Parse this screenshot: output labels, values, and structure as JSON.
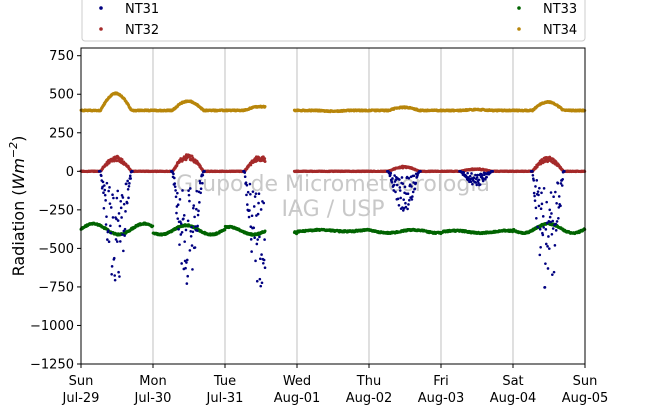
{
  "chart_data": {
    "type": "scatter",
    "title": "",
    "xlabel": "",
    "ylabel": "Radiation (Wm^-2)",
    "ylim": [
      -1250,
      800
    ],
    "xlim": [
      0,
      7
    ],
    "grid": "vertical at day boundaries",
    "legend_position": "top (above plot), two columns",
    "watermark": [
      "Grupo de Micrometeorologia",
      "IAG / USP"
    ],
    "x_ticks": [
      {
        "day": 0,
        "weekday": "Sun",
        "date": "Jul-29"
      },
      {
        "day": 1,
        "weekday": "Mon",
        "date": "Jul-30"
      },
      {
        "day": 2,
        "weekday": "Tue",
        "date": "Jul-31"
      },
      {
        "day": 3,
        "weekday": "Wed",
        "date": "Aug-01"
      },
      {
        "day": 4,
        "weekday": "Thu",
        "date": "Aug-02"
      },
      {
        "day": 5,
        "weekday": "Fri",
        "date": "Aug-03"
      },
      {
        "day": 6,
        "weekday": "Sat",
        "date": "Aug-04"
      },
      {
        "day": 7,
        "weekday": "Sun",
        "date": "Aug-05"
      }
    ],
    "y_ticks": [
      750,
      500,
      250,
      0,
      -250,
      -500,
      -750,
      -1000,
      -1250
    ],
    "data_gap": [
      2.56,
      2.96
    ],
    "series": [
      {
        "name": "NT31",
        "color": "#000080",
        "baseline": 0,
        "daily_minimum": [
          -710,
          -720,
          -750,
          null,
          -260,
          -90,
          -780
        ]
      },
      {
        "name": "NT32",
        "color": "#a52a2a",
        "baseline": 0,
        "daily_peak": [
          90,
          100,
          90,
          null,
          30,
          15,
          85
        ]
      },
      {
        "name": "NT33",
        "color": "#006400",
        "baseline": -380,
        "daily_range": [
          [
            -410,
            -340
          ],
          [
            -410,
            -350
          ],
          [
            -410,
            -360
          ],
          [
            -390,
            -380
          ],
          [
            -400,
            -380
          ],
          [
            -400,
            -385
          ],
          [
            -400,
            -340
          ]
        ]
      },
      {
        "name": "NT34",
        "color": "#b8860b",
        "baseline": 395,
        "daily_peak": [
          505,
          455,
          420,
          390,
          415,
          400,
          450
        ]
      }
    ]
  }
}
